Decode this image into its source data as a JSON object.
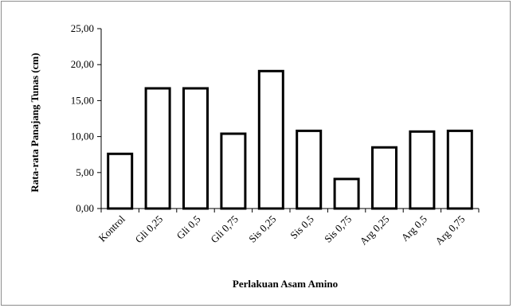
{
  "chart_data": {
    "type": "bar",
    "title": "",
    "xlabel": "Perlakuan Asam Amino",
    "ylabel": "Rata-rata Panajang  Tunas (cm)",
    "categories": [
      "Kontrol",
      "Gli 0,25",
      "Gli 0,5",
      "Gli 0,75",
      "Sis 0,25",
      "Sis 0,5",
      "Sis 0,75",
      "Arg 0,25",
      "Arg 0,5",
      "Arg 0,75"
    ],
    "values": [
      7.6,
      16.7,
      16.7,
      10.4,
      19.1,
      10.8,
      4.1,
      8.5,
      10.7,
      10.8
    ],
    "ylim": [
      0,
      25
    ],
    "yticks": [
      0,
      5,
      10,
      15,
      20,
      25
    ],
    "ytick_labels": [
      "0,00",
      "5,00",
      "10,00",
      "15,00",
      "20,00",
      "25,00"
    ],
    "grid": false,
    "legend": "none",
    "bar_fill": "#ffffff",
    "bar_stroke": "#000000"
  }
}
